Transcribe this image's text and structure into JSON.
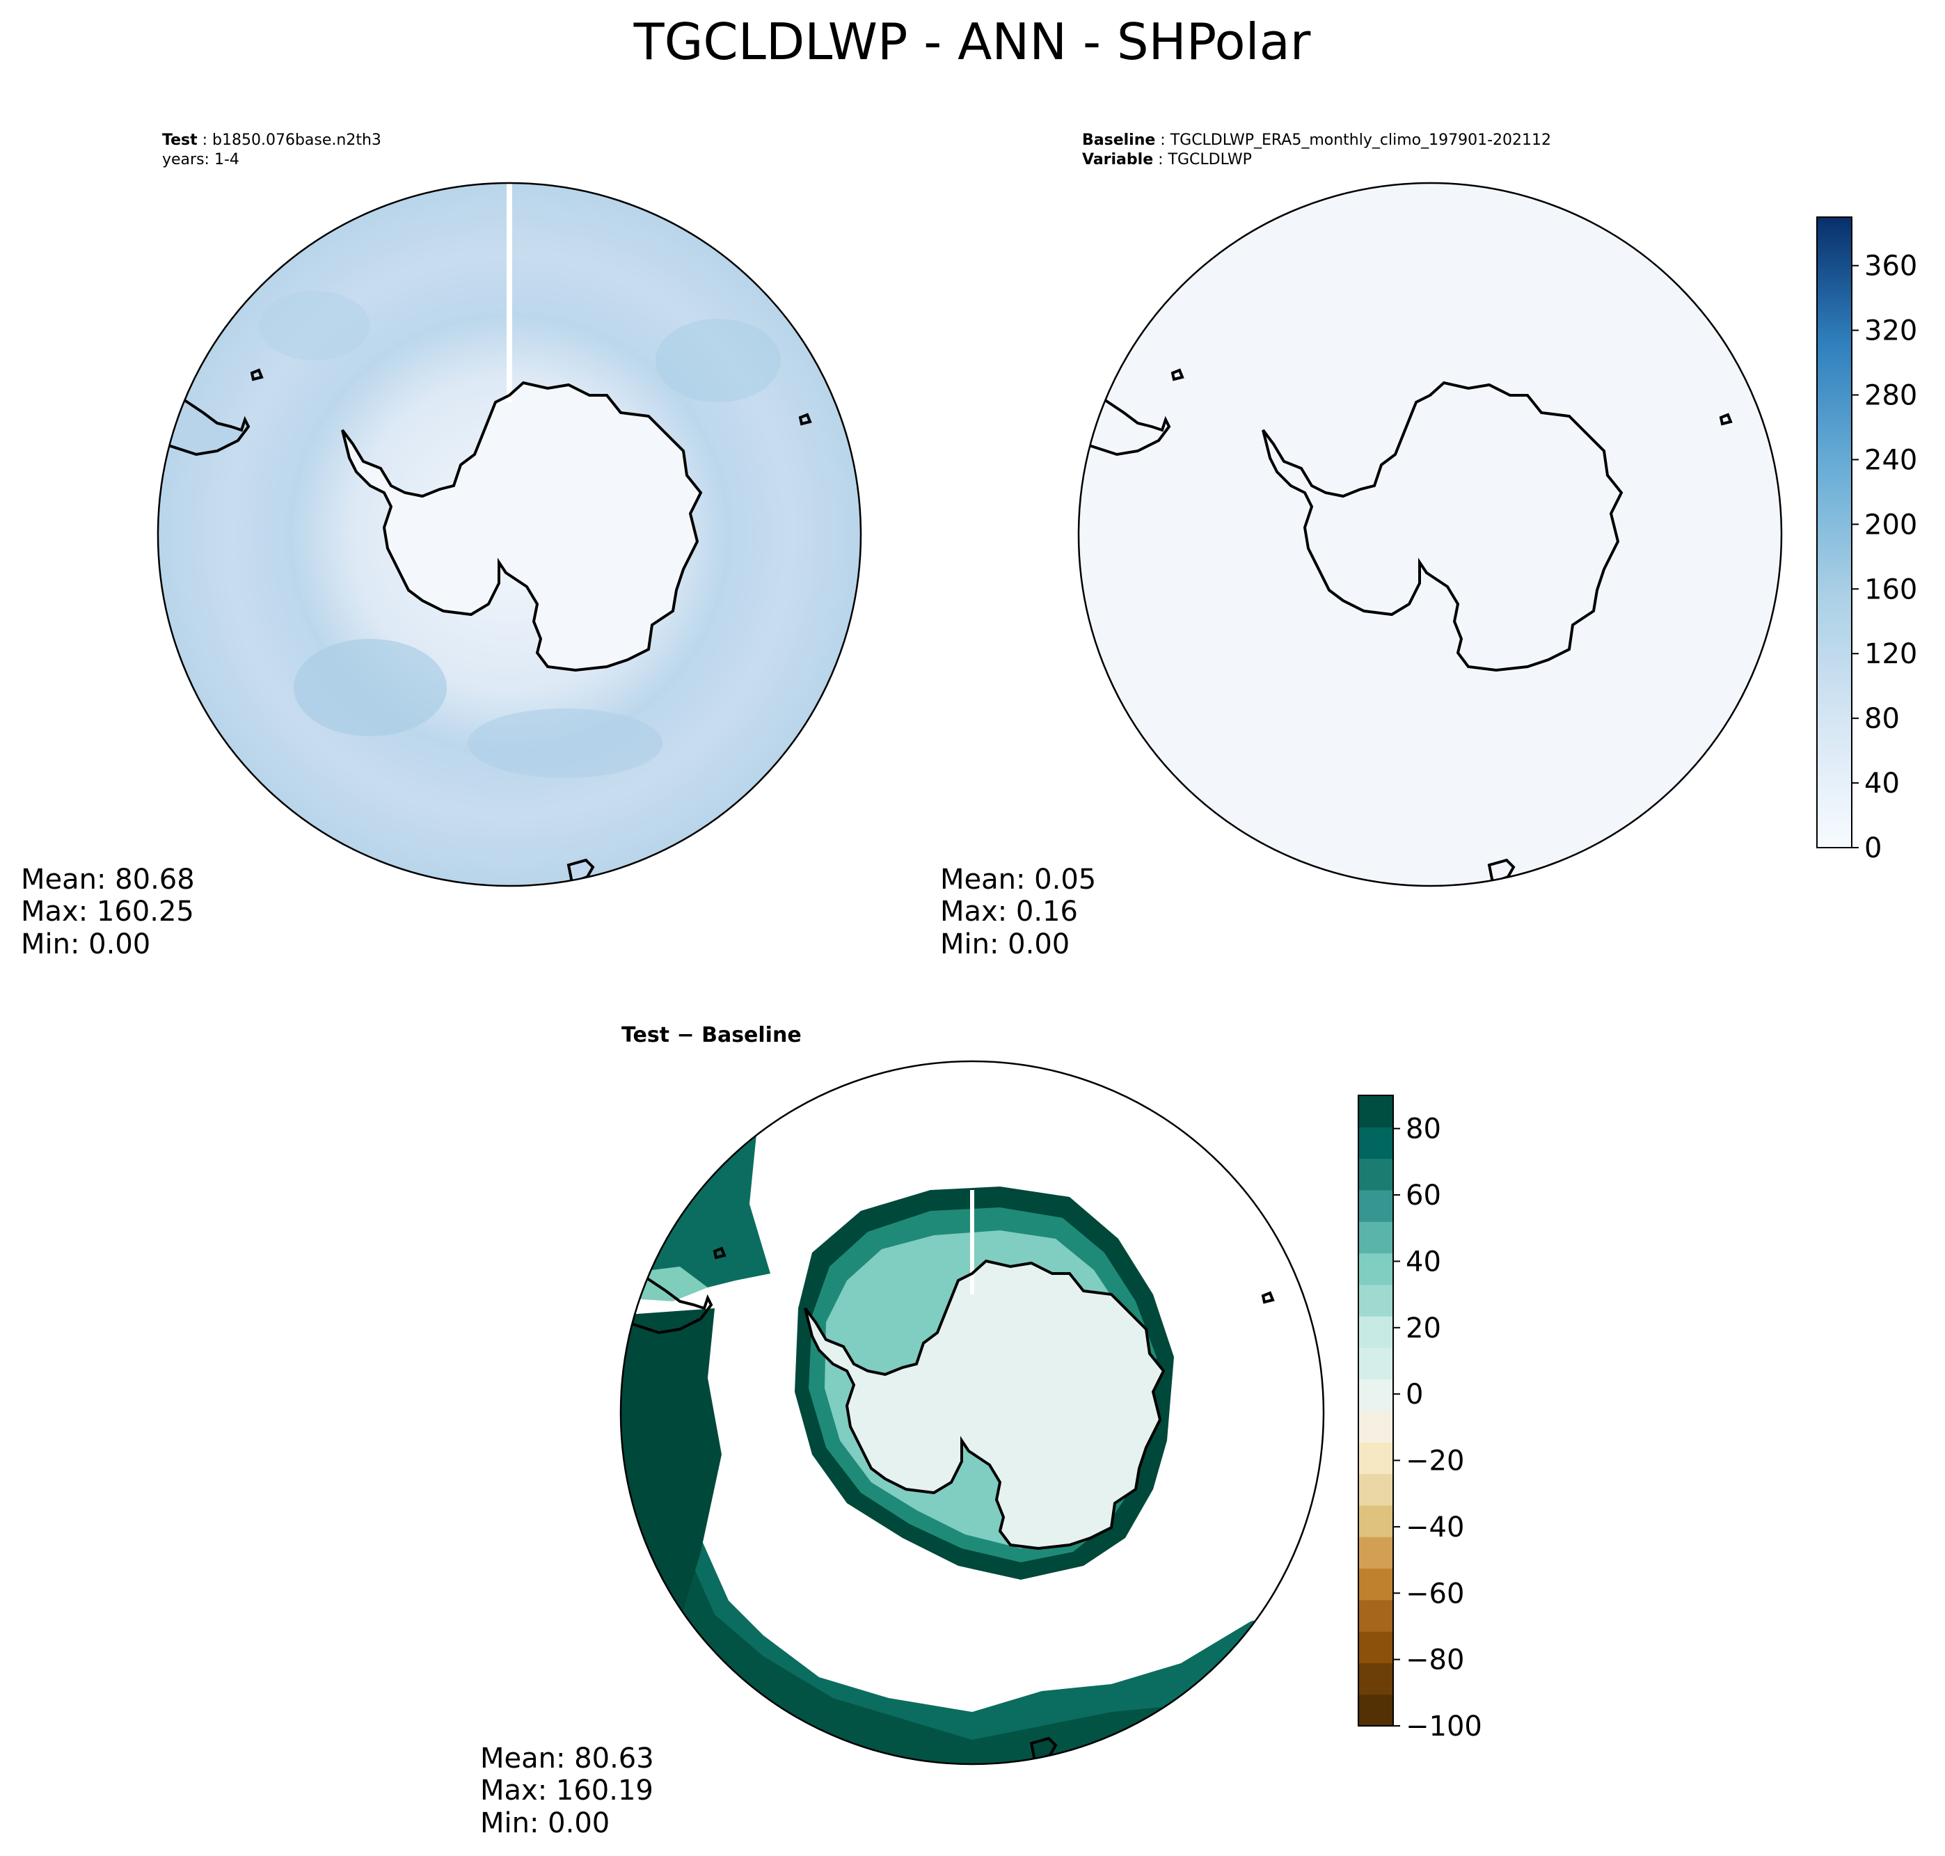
{
  "title": "TGCLDLWP - ANN - SHPolar",
  "colors": {
    "ocean_light": "#cfe1f2",
    "ocean_mid": "#b4d3e9",
    "ocean_dark": "#9ecae1",
    "land_white": "#f4f8fc",
    "baseline_fill": "#f3f7fc",
    "diff_ice": "#e6f2ef",
    "diff_deep": "#00483a",
    "diff_mid": "#0b6d5f",
    "coast": "#000000"
  },
  "panels": {
    "test": {
      "label_key": "Test",
      "label_value": "b1850.076base.n2th3",
      "years": "years: 1-4",
      "mean_label": "Mean: 80.68",
      "max_label": "Max: 160.25",
      "min_label": "Min:  0.00"
    },
    "baseline": {
      "label_key": "Baseline",
      "label_value": "TGCLDLWP_ERA5_monthly_climo_197901-202112",
      "variable_key": "Variable",
      "variable_value": "TGCLDLWP",
      "mean_label": "Mean:  0.05",
      "max_label": "Max:  0.16",
      "min_label": "Min:  0.00"
    },
    "diff": {
      "title_left": "Test",
      "title_op": "−",
      "title_right": "Baseline",
      "mean_label": "Mean: 80.63",
      "max_label": "Max: 160.19",
      "min_label": "Min:  0.00"
    }
  },
  "chart_data": [
    {
      "type": "heatmap",
      "name": "Test",
      "projection": "south-polar-stereographic",
      "stats": {
        "mean": 80.68,
        "max": 160.25,
        "min": 0.0
      },
      "colorbar": {
        "cmap": "Blues",
        "range": [
          0,
          390
        ],
        "ticks": [
          0,
          40,
          80,
          120,
          160,
          200,
          240,
          280,
          320,
          360
        ]
      }
    },
    {
      "type": "heatmap",
      "name": "Baseline",
      "projection": "south-polar-stereographic",
      "stats": {
        "mean": 0.05,
        "max": 0.16,
        "min": 0.0
      },
      "colorbar": {
        "cmap": "Blues",
        "range": [
          0,
          390
        ],
        "ticks": [
          0,
          40,
          80,
          120,
          160,
          200,
          240,
          280,
          320,
          360
        ]
      }
    },
    {
      "type": "heatmap",
      "name": "Test − Baseline",
      "projection": "south-polar-stereographic",
      "stats": {
        "mean": 80.63,
        "max": 160.19,
        "min": 0.0
      },
      "colorbar": {
        "cmap": "BrBG",
        "range": [
          -100,
          90
        ],
        "ticks": [
          -100,
          -80,
          -60,
          -40,
          -20,
          0,
          20,
          40,
          60,
          80
        ],
        "tick_labels": [
          "−100",
          "−80",
          "−60",
          "−40",
          "−20",
          "0",
          "20",
          "40",
          "60",
          "80"
        ]
      }
    }
  ]
}
